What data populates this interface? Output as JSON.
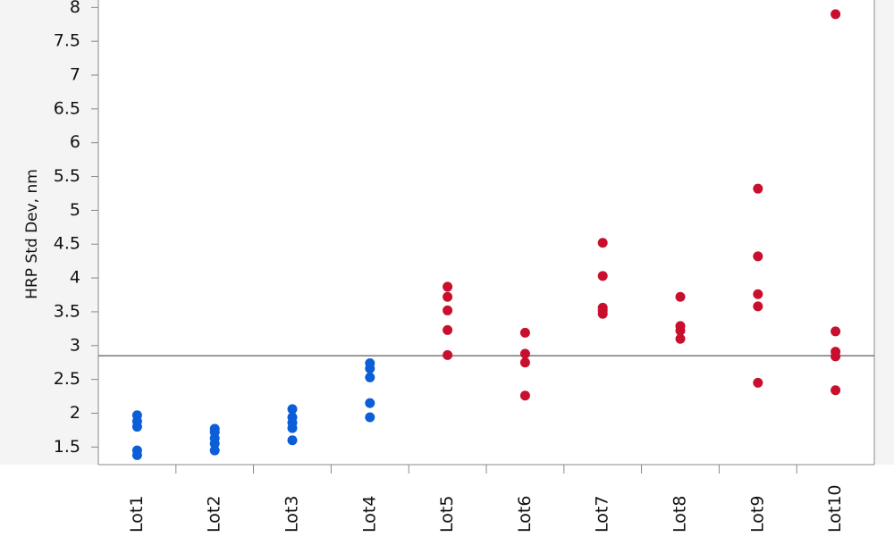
{
  "chart_data": {
    "type": "strip",
    "y_label": "HRP Std Dev, nm",
    "categories": [
      "Lot1",
      "Lot2",
      "Lot3",
      "Lot4",
      "Lot5",
      "Lot6",
      "Lot7",
      "Lot8",
      "Lot9",
      "Lot10"
    ],
    "values": [
      [
        1.97,
        1.88,
        1.8,
        1.45,
        1.38
      ],
      [
        1.77,
        1.72,
        1.63,
        1.55,
        1.45
      ],
      [
        2.06,
        1.94,
        1.86,
        1.78,
        1.6
      ],
      [
        2.74,
        2.66,
        2.53,
        2.15,
        1.94
      ],
      [
        3.87,
        3.72,
        3.52,
        3.23,
        2.86
      ],
      [
        3.19,
        2.88,
        2.75,
        2.26
      ],
      [
        4.52,
        4.03,
        3.56,
        3.52,
        3.47
      ],
      [
        3.72,
        3.29,
        3.22,
        3.1
      ],
      [
        5.32,
        4.32,
        3.76,
        3.58,
        2.45
      ],
      [
        7.9,
        3.21,
        2.91,
        2.84,
        2.34
      ]
    ],
    "point_colors": [
      "#0b5ed7",
      "#0b5ed7",
      "#0b5ed7",
      "#0b5ed7",
      "#c8102e",
      "#c8102e",
      "#c8102e",
      "#c8102e",
      "#c8102e",
      "#c8102e"
    ],
    "reference_line": 2.85,
    "ylim": [
      1.24,
      8.11
    ],
    "yticks": [
      1.5,
      2,
      2.5,
      3,
      3.5,
      4,
      4.5,
      5,
      5.5,
      6,
      6.5,
      7,
      7.5,
      8
    ]
  }
}
